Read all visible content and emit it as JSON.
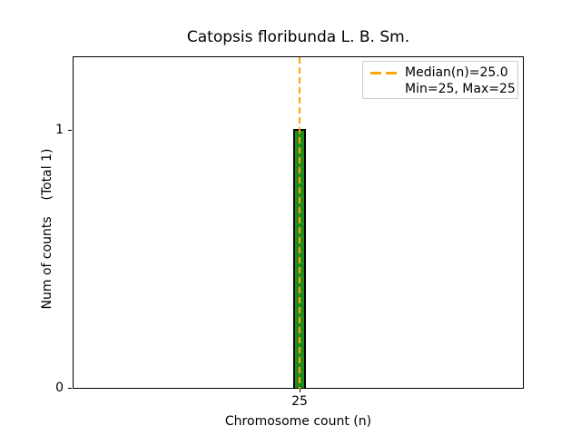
{
  "title": "Catopsis floribunda L. B. Sm.",
  "axes": {
    "xlabel": "Chromosome count (n)",
    "ylabel": "Num of counts    (Total 1)",
    "xticks": [
      "25"
    ],
    "yticks": [
      "0",
      "1"
    ]
  },
  "legend": {
    "items": [
      {
        "label": "Median(n)=25.0",
        "marker": "orange-dashed-line"
      },
      {
        "label": "Min=25, Max=25",
        "marker": "none"
      }
    ]
  },
  "colors": {
    "bar_fill": "#1f8b1f",
    "bar_edge": "#000000",
    "median_line": "#FFA500",
    "spine": "#000000",
    "legend_border": "#cccccc",
    "background": "#ffffff"
  },
  "chart_data": {
    "type": "bar",
    "title": "Catopsis floribunda L. B. Sm.",
    "xlabel": "Chromosome count (n)",
    "ylabel": "Num of counts (Total 1)",
    "categories": [
      25
    ],
    "values": [
      1
    ],
    "total_counts": 1,
    "median": 25.0,
    "min": 25,
    "max": 25,
    "xticks": [
      25
    ],
    "yticks": [
      0,
      1
    ],
    "ylim": [
      0,
      1.28
    ],
    "grid": false,
    "legend_position": "upper right",
    "annotations": [
      "Median(n)=25.0 shown as vertical orange dashed line at x=25",
      "Single green bar with black edge at x=25, height 1"
    ]
  }
}
